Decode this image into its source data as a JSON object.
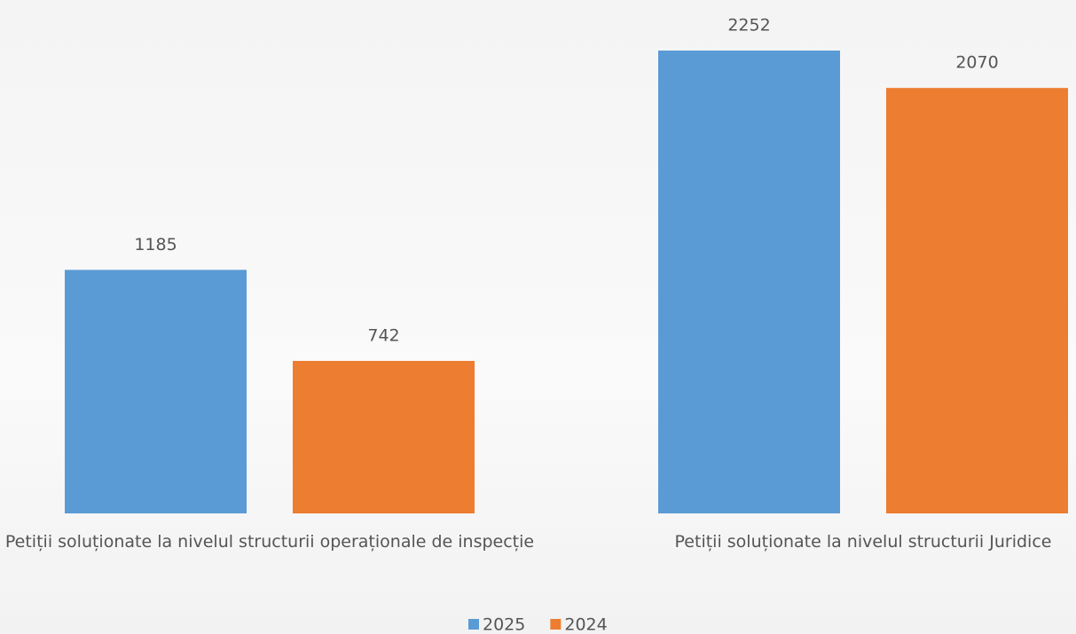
{
  "chart_data": {
    "type": "bar",
    "categories": [
      "Petiții soluționate la nivelul structurii operaționale de inspecție",
      "Petiții soluționate la nivelul structurii Juridice"
    ],
    "series": [
      {
        "name": "2025",
        "color": "#5b9bd5",
        "values": [
          1185,
          2252
        ]
      },
      {
        "name": "2024",
        "color": "#ed7d31",
        "values": [
          742,
          2070
        ]
      }
    ],
    "legend": "bottom"
  }
}
